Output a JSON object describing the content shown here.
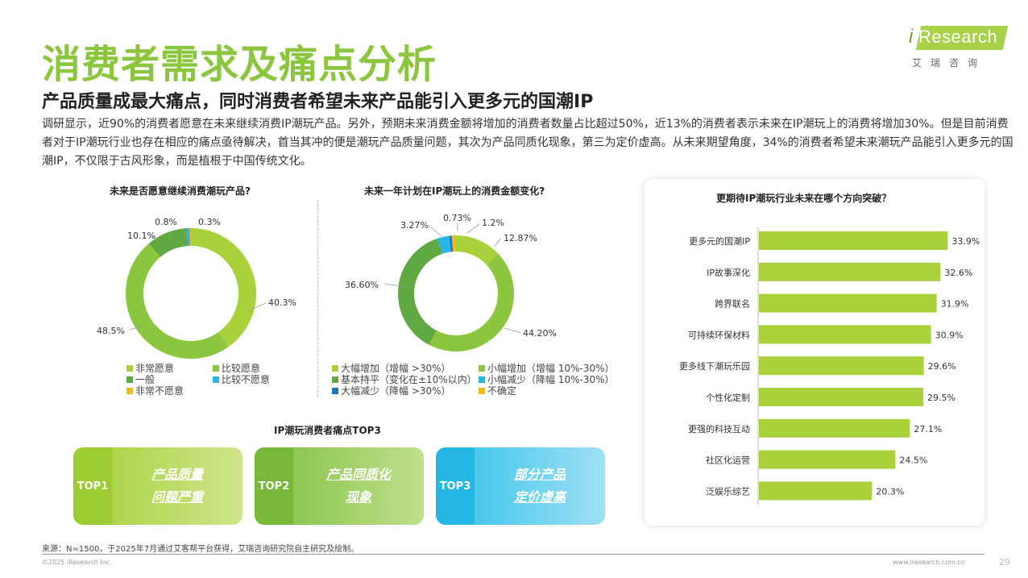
{
  "header": {
    "title": "消费者需求及痛点分析",
    "subtitle": "产品质量成最大痛点，同时消费者希望未来产品能引入更多元的国潮IP",
    "desc": "调研显示，近90%的消费者愿意在未来继续消费IP潮玩产品。另外，预期未来消费金额将增加的消费者数量占比超过50%，近13%的消费者表示未来在IP潮玩上的消费将增加30%。但是目前消费者对于IP潮玩行业也存在相应的痛点亟待解决，首当其冲的便是潮玩产品质量问题，其次为产品同质化现象，第三为定价虚高。从未来期望角度，34%的消费者希望未来潮玩产品能引入更多元的国潮IP，不仅限于古风形象，而是植根于中国传统文化。"
  },
  "logo": {
    "mark": "i",
    "text": "Research",
    "cn": "艾瑞咨询"
  },
  "colors": {
    "green_light": "#a9d13c",
    "green_mid": "#8cc63f",
    "green_dark": "#5fa842",
    "cyan": "#2bb5e6",
    "blue": "#1f78b4",
    "orange": "#f5b81b",
    "title_green": "#8cc63f"
  },
  "chart_data": [
    {
      "type": "pie",
      "donut": true,
      "title": "未来是否愿意继续消费潮玩产品?",
      "series": [
        {
          "name": "非常愿意",
          "value": 40.3,
          "label": "40.3%",
          "color": "#a9d13c"
        },
        {
          "name": "比较愿意",
          "value": 48.5,
          "label": "48.5%",
          "color": "#8cc63f"
        },
        {
          "name": "一般",
          "value": 10.1,
          "label": "10.1%",
          "color": "#5fa842"
        },
        {
          "name": "比较不愿意",
          "value": 0.8,
          "label": "0.8%",
          "color": "#2bb5e6"
        },
        {
          "name": "非常不愿意",
          "value": 0.3,
          "label": "0.3%",
          "color": "#f5b81b"
        }
      ],
      "legend": [
        "非常愿意",
        "比较愿意",
        "一般",
        "比较不愿意",
        "非常不愿意"
      ]
    },
    {
      "type": "pie",
      "donut": true,
      "title": "未来一年计划在IP潮玩上的消费金额变化?",
      "series": [
        {
          "name": "大幅增加（增幅 >30%）",
          "value": 12.87,
          "label": "12.87%",
          "color": "#a9d13c"
        },
        {
          "name": "小幅增加（增幅 10%-30%）",
          "value": 44.2,
          "label": "44.20%",
          "color": "#8cc63f"
        },
        {
          "name": "基本持平（变化在±10%以内）",
          "value": 36.6,
          "label": "36.60%",
          "color": "#5fa842"
        },
        {
          "name": "小幅减少（降幅 10%-30%）",
          "value": 3.27,
          "label": "3.27%",
          "color": "#2bb5e6"
        },
        {
          "name": "大幅减少（降幅 >30%）",
          "value": 0.73,
          "label": "0.73%",
          "color": "#1f78b4"
        },
        {
          "name": "不确定",
          "value": 1.2,
          "label": "1.2%",
          "color": "#f5b81b"
        }
      ],
      "legend": [
        "大幅增加（增幅 >30%）",
        "小幅增加（增幅 10%-30%）",
        "基本持平（变化在±10%以内）",
        "小幅减少（降幅 10%-30%）",
        "大幅减少（降幅 >30%）",
        "不确定"
      ]
    },
    {
      "type": "bar",
      "orientation": "horizontal",
      "title": "更期待IP潮玩行业未来在哪个方向突破？",
      "categories": [
        "更多元的国潮IP",
        "IP故事深化",
        "跨界联名",
        "可持续环保材料",
        "更多线下潮玩乐园",
        "个性化定制",
        "更强的科技互动",
        "社区化运营",
        "泛娱乐综艺"
      ],
      "values": [
        33.9,
        32.6,
        31.9,
        30.9,
        29.6,
        29.5,
        27.1,
        24.5,
        20.3
      ],
      "labels": [
        "33.9%",
        "32.6%",
        "31.9%",
        "30.9%",
        "29.6%",
        "29.5%",
        "27.1%",
        "24.5%",
        "20.3%"
      ],
      "xlim": [
        0,
        35
      ],
      "color": "#a9d13c"
    }
  ],
  "pain": {
    "title": "IP潮玩消费者痛点TOP3",
    "items": [
      {
        "tag": "TOP1",
        "line1": "产品质量",
        "line2": "问题严重"
      },
      {
        "tag": "TOP2",
        "line1": "产品同质化",
        "line2": "现象"
      },
      {
        "tag": "TOP3",
        "line1": "部分产品",
        "line2": "定价虚高"
      }
    ]
  },
  "footer": {
    "source": "来源：N=1500，于2025年7月通过艾客帮平台获得，艾瑞咨询研究院自主研究及绘制。",
    "copyright": "©2025 iResearch Inc.",
    "site": "www.iresearch.com.cn",
    "page": "29"
  }
}
